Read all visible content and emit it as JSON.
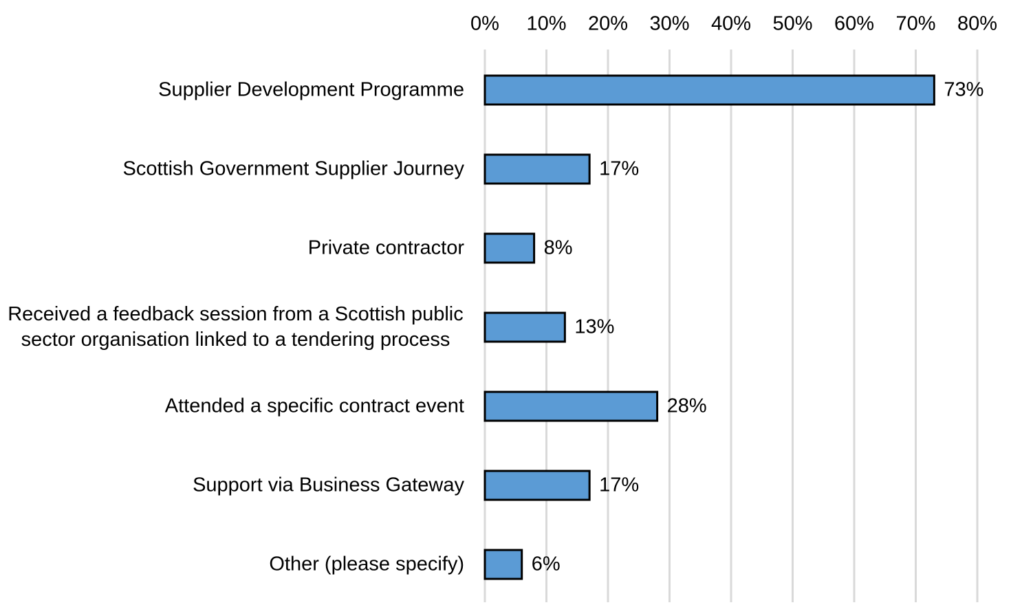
{
  "chart_data": {
    "type": "bar",
    "orientation": "horizontal",
    "categories": [
      "Supplier Development Programme",
      "Scottish Government Supplier Journey",
      "Private contractor",
      "Received a feedback session from a Scottish public sector organisation linked to a tendering process",
      "Attended a specific contract event",
      "Support via Business Gateway",
      "Other (please specify)"
    ],
    "values": [
      73,
      17,
      8,
      13,
      28,
      17,
      6
    ],
    "value_labels": [
      "73%",
      "17%",
      "8%",
      "13%",
      "28%",
      "17%",
      "6%"
    ],
    "color": "#5b9bd5",
    "xlim": [
      0,
      80
    ],
    "xticks": [
      {
        "value": 0,
        "label": "0%"
      },
      {
        "value": 10,
        "label": "10%"
      },
      {
        "value": 20,
        "label": "20%"
      },
      {
        "value": 30,
        "label": "30%"
      },
      {
        "value": 40,
        "label": "40%"
      },
      {
        "value": 50,
        "label": "50%"
      },
      {
        "value": 60,
        "label": "60%"
      },
      {
        "value": 70,
        "label": "70%"
      },
      {
        "value": 80,
        "label": "80%"
      }
    ],
    "grid": true
  }
}
